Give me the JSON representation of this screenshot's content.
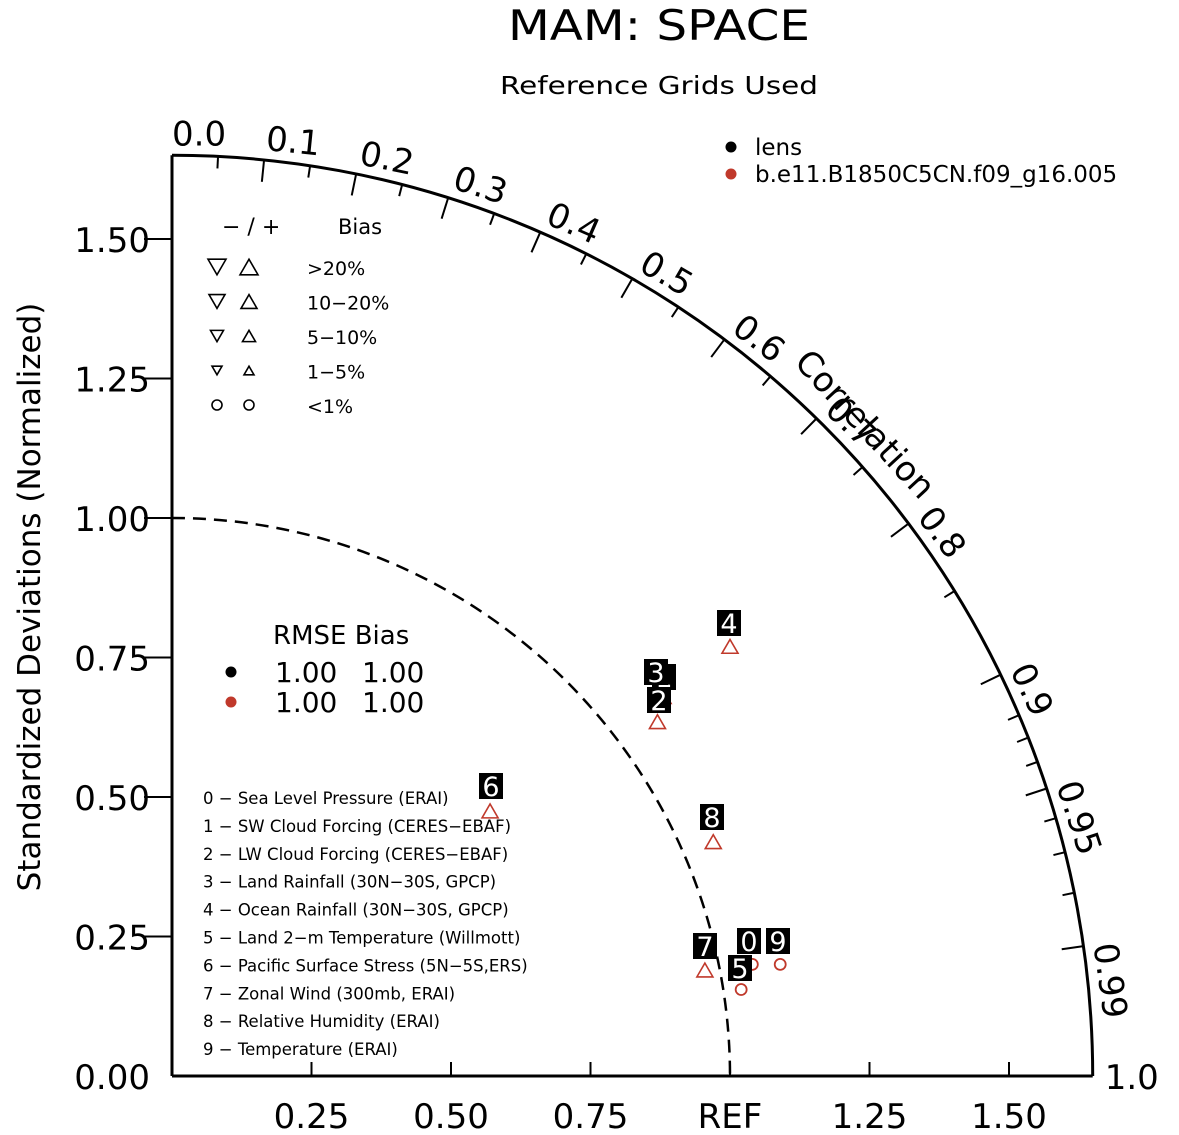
{
  "chart_data": {
    "type": "scatter",
    "subtype": "taylor-diagram",
    "title": "MAM: SPACE",
    "subtitle": "Reference Grids Used",
    "ylabel": "Standardized Deviations (Normalized)",
    "angular_label": "Correlation",
    "ylim": [
      0,
      1.65
    ],
    "xlim": [
      0,
      1.65
    ],
    "y_ticks": [
      "0.00",
      "0.25",
      "0.50",
      "0.75",
      "1.00",
      "1.25",
      "1.50"
    ],
    "x_ticks": [
      "0.25",
      "0.50",
      "0.75",
      "REF",
      "1.25",
      "1.50"
    ],
    "correlation_ticks": [
      "0.0",
      "0.1",
      "0.2",
      "0.3",
      "0.4",
      "0.5",
      "0.6",
      "0.7",
      "0.8",
      "0.9",
      "0.95",
      "0.99",
      "1.0"
    ],
    "reference_std": 1.0,
    "cases": [
      {
        "name": "lens",
        "color": "#000000"
      },
      {
        "name": "b.e11.B1850C5CN.f09_g16.005",
        "color": "#c0392b"
      }
    ],
    "rmse_bias": {
      "header": "RMSE Bias",
      "rows": [
        {
          "color": "#000000",
          "rmse": "1.00",
          "bias": "1.00"
        },
        {
          "color": "#c0392b",
          "rmse": "1.00",
          "bias": "1.00"
        }
      ]
    },
    "bias_legend": {
      "header_sign": "−  /  +",
      "header_bias": "Bias",
      "rows": [
        {
          "label": ">20%",
          "shape": "triangle",
          "size": 9
        },
        {
          "label": "10−20%",
          "shape": "triangle",
          "size": 8
        },
        {
          "label": "5−10%",
          "shape": "triangle",
          "size": 6.5
        },
        {
          "label": "1−5%",
          "shape": "triangle",
          "size": 5
        },
        {
          "label": "<1%",
          "shape": "circle",
          "size": 5
        }
      ]
    },
    "variables": [
      "0 − Sea Level Pressure (ERAI)",
      "1 − SW Cloud Forcing (CERES−EBAF)",
      "2 − LW Cloud Forcing (CERES−EBAF)",
      "3 − Land Rainfall (30N−30S, GPCP)",
      "4 − Ocean Rainfall (30N−30S, GPCP)",
      "5 − Land 2−m Temperature (Willmott)",
      "6 − Pacific Surface Stress (5N−5S,ERS)",
      "7 − Zonal Wind (300mb, ERAI)",
      "8 − Relative Humidity (ERAI)",
      "9 − Temperature (ERAI)"
    ],
    "points": [
      {
        "id": "0",
        "x": 1.04,
        "y": 0.2,
        "shape": "circle",
        "case": 1
      },
      {
        "id": "1",
        "x": 0.88,
        "y": 0.68,
        "shape": "triangle-up",
        "case": 1
      },
      {
        "id": "2",
        "x": 0.87,
        "y": 0.635,
        "shape": "triangle-up",
        "case": 1
      },
      {
        "id": "3",
        "x": 0.875,
        "y": 0.69,
        "shape": "triangle-up",
        "case": 1
      },
      {
        "id": "4",
        "x": 1.0,
        "y": 0.77,
        "shape": "triangle-up",
        "case": 1
      },
      {
        "id": "5",
        "x": 1.02,
        "y": 0.155,
        "shape": "circle",
        "case": 1
      },
      {
        "id": "6",
        "x": 0.57,
        "y": 0.475,
        "shape": "triangle-up",
        "case": 1
      },
      {
        "id": "7",
        "x": 0.955,
        "y": 0.19,
        "shape": "triangle-up",
        "case": 1
      },
      {
        "id": "8",
        "x": 0.97,
        "y": 0.42,
        "shape": "triangle-up",
        "case": 1
      },
      {
        "id": "9",
        "x": 1.09,
        "y": 0.2,
        "shape": "circle",
        "case": 1
      }
    ]
  }
}
